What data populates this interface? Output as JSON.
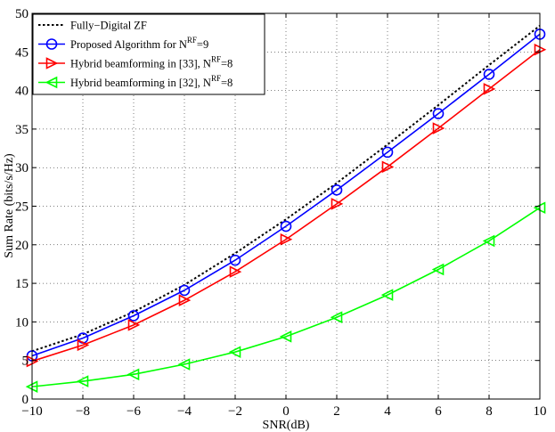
{
  "chart_data": {
    "type": "line",
    "title": "",
    "xlabel": "SNR(dB)",
    "ylabel": "Sum Rate (bits/s/Hz)",
    "xlim": [
      -10,
      10
    ],
    "ylim": [
      0,
      50
    ],
    "xticks": [
      -10,
      -8,
      -6,
      -4,
      -2,
      0,
      2,
      4,
      6,
      8,
      10
    ],
    "yticks": [
      0,
      5,
      10,
      15,
      20,
      25,
      30,
      35,
      40,
      45,
      50
    ],
    "grid": true,
    "legend_position": "top-left",
    "x": [
      -10,
      -8,
      -6,
      -4,
      -2,
      0,
      2,
      4,
      6,
      8,
      10
    ],
    "series": [
      {
        "name": "Fully−Digital ZF",
        "legend_main": "Fully−Digital ZF",
        "legend_sup": "",
        "legend_tail": "",
        "values": [
          6.2,
          8.4,
          11.3,
          14.8,
          18.9,
          23.3,
          28.0,
          33.0,
          38.1,
          43.3,
          48.4
        ],
        "color": "#000000",
        "style": "dotted",
        "marker": "none"
      },
      {
        "name": "Proposed Algorithm for N^RF=9",
        "legend_main": "Proposed Algorithm for N",
        "legend_sup": "RF",
        "legend_tail": "=9",
        "values": [
          5.6,
          7.9,
          10.8,
          14.1,
          18.0,
          22.4,
          27.1,
          32.0,
          37.0,
          42.1,
          47.3
        ],
        "color": "#0000ff",
        "style": "solid",
        "marker": "circle"
      },
      {
        "name": "Hybrid beamforming in [33], N^RF=8",
        "legend_main": "Hybrid beamforming in [33], N",
        "legend_sup": "RF",
        "legend_tail": "=8",
        "values": [
          4.9,
          7.0,
          9.6,
          12.8,
          16.5,
          20.7,
          25.3,
          30.1,
          35.1,
          40.2,
          45.3
        ],
        "color": "#ff0000",
        "style": "solid",
        "marker": "triangle-right"
      },
      {
        "name": "Hybrid beamforming in [32], N^RF=8",
        "legend_main": "Hybrid beamforming in [32], N",
        "legend_sup": "RF",
        "legend_tail": "=8",
        "values": [
          1.6,
          2.3,
          3.2,
          4.5,
          6.1,
          8.1,
          10.6,
          13.5,
          16.8,
          20.5,
          24.8
        ],
        "color": "#00ff00",
        "style": "solid",
        "marker": "triangle-left"
      }
    ]
  }
}
